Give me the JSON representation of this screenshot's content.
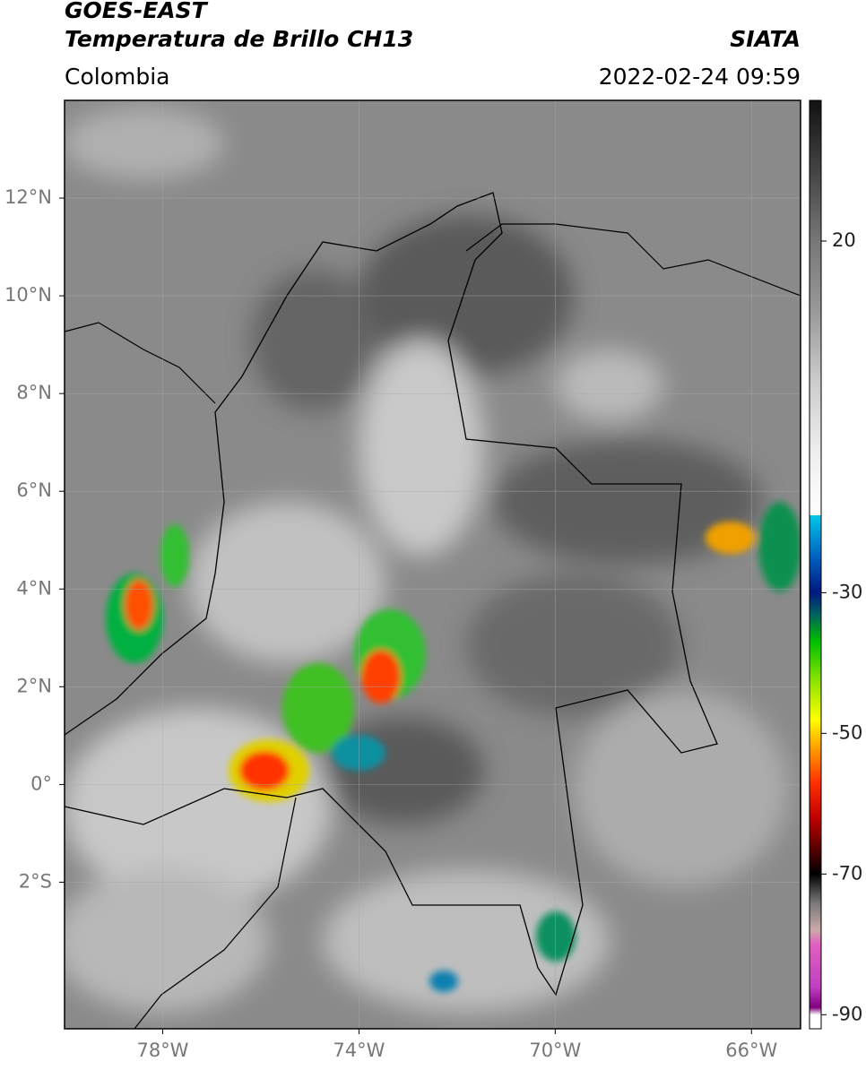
{
  "map": {
    "title": "GOES-EAST",
    "subtitle": "Temperatura de Brillo CH13",
    "source": "SIATA",
    "region": "Colombia",
    "datetime": "2022-02-24 09:59",
    "lonlim": [
      -80,
      -65
    ],
    "latlim": [
      -5,
      14
    ],
    "lon_ticks": [
      {
        "value": -78,
        "label": "78°W"
      },
      {
        "value": -74,
        "label": "74°W"
      },
      {
        "value": -70,
        "label": "70°W"
      },
      {
        "value": -66,
        "label": "66°W"
      }
    ],
    "lat_ticks": [
      {
        "value": 12,
        "label": "12°N"
      },
      {
        "value": 10,
        "label": "10°N"
      },
      {
        "value": 8,
        "label": "8°N"
      },
      {
        "value": 6,
        "label": "6°N"
      },
      {
        "value": 4,
        "label": "4°N"
      },
      {
        "value": 2,
        "label": "2°N"
      },
      {
        "value": 0,
        "label": "0°"
      },
      {
        "value": -2,
        "label": "2°S"
      }
    ],
    "grid": true,
    "colorbar": {
      "lim": [
        -92,
        40
      ],
      "ticks": [
        20,
        -30,
        -50,
        -70,
        -90
      ]
    }
  }
}
